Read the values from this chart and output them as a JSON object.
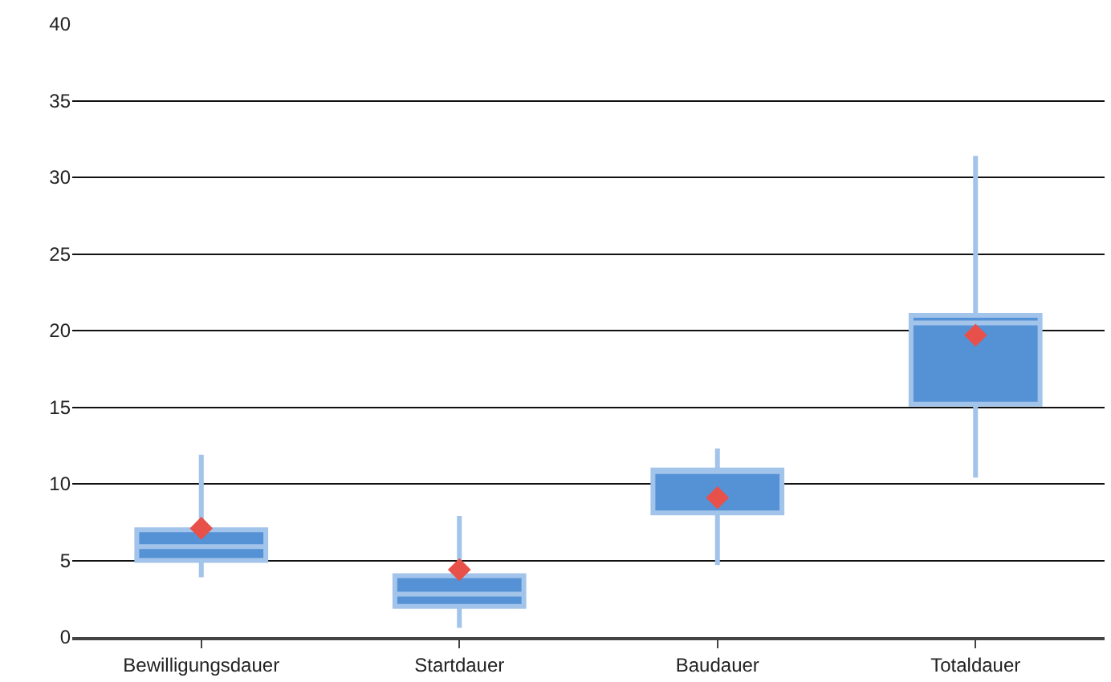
{
  "chart_data": {
    "type": "box",
    "categories": [
      "Bewilligungsdauer",
      "Startdauer",
      "Baudauer",
      "Totaldauer"
    ],
    "series": [
      {
        "color": "#5592d5",
        "boxes": [
          {
            "low": 3.9,
            "q1": 5.0,
            "median": 5.9,
            "q3": 7.0,
            "high": 11.9,
            "mean": 7.1
          },
          {
            "low": 0.6,
            "q1": 2.0,
            "median": 2.8,
            "q3": 4.0,
            "high": 7.9,
            "mean": 4.4
          },
          {
            "low": 4.7,
            "q1": 8.1,
            "median": 10.9,
            "q3": 10.9,
            "high": 12.3,
            "mean": 9.1
          },
          {
            "low": 10.4,
            "q1": 15.2,
            "median": 20.5,
            "q3": 21.0,
            "high": 31.4,
            "mean": 19.7
          }
        ]
      }
    ],
    "ylim": [
      0,
      40
    ],
    "yticks": [
      0,
      5,
      10,
      15,
      20,
      25,
      30,
      35,
      40
    ],
    "grid": "y"
  }
}
